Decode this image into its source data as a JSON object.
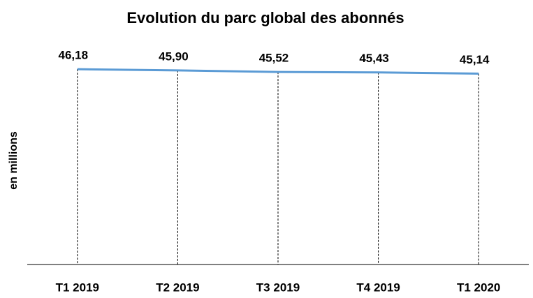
{
  "chart_data": {
    "type": "line",
    "title": "Evolution du parc global des abonnés",
    "ylabel": "en millions",
    "categories": [
      "T1 2019",
      "T2 2019",
      "T3 2019",
      "T4 2019",
      "T1 2020"
    ],
    "series": [
      {
        "name": "abonnés",
        "color": "#5b9bd5",
        "values": [
          46.18,
          45.9,
          45.52,
          45.43,
          45.14
        ],
        "value_labels": [
          "46,18",
          "45,90",
          "45,52",
          "45,43",
          "45,14"
        ]
      }
    ],
    "ylim": [
      0,
      50
    ]
  }
}
